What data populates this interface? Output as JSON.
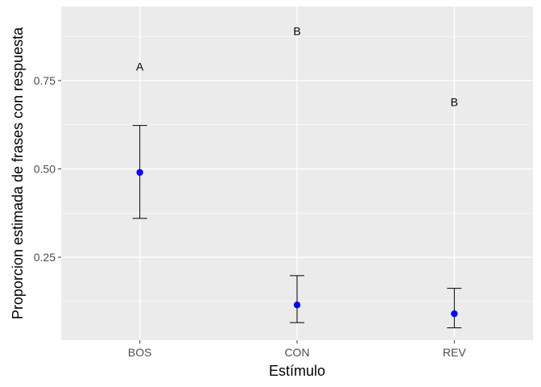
{
  "chart_data": {
    "type": "scatter",
    "xlabel": "Estímulo",
    "ylabel": "Proporcion estimada de frases con respuesta",
    "categories": [
      "BOS",
      "CON",
      "REV"
    ],
    "series": [
      {
        "values": [
          0.49,
          0.115,
          0.09
        ],
        "lower": [
          0.36,
          0.065,
          0.05
        ],
        "upper": [
          0.623,
          0.198,
          0.162
        ]
      }
    ],
    "group_letters": [
      "A",
      "B",
      "B"
    ],
    "letter_y": [
      0.79,
      0.89,
      0.69
    ],
    "ylim": [
      0.015,
      0.96
    ],
    "yticks": [
      0.25,
      0.5,
      0.75
    ],
    "ytick_labels": [
      "0.25",
      "0.50",
      "0.75"
    ],
    "grid": true,
    "colors": {
      "point": "#0000ff",
      "errorbar": "#000000",
      "panel": "#ebebeb",
      "grid": "#ffffff"
    }
  }
}
